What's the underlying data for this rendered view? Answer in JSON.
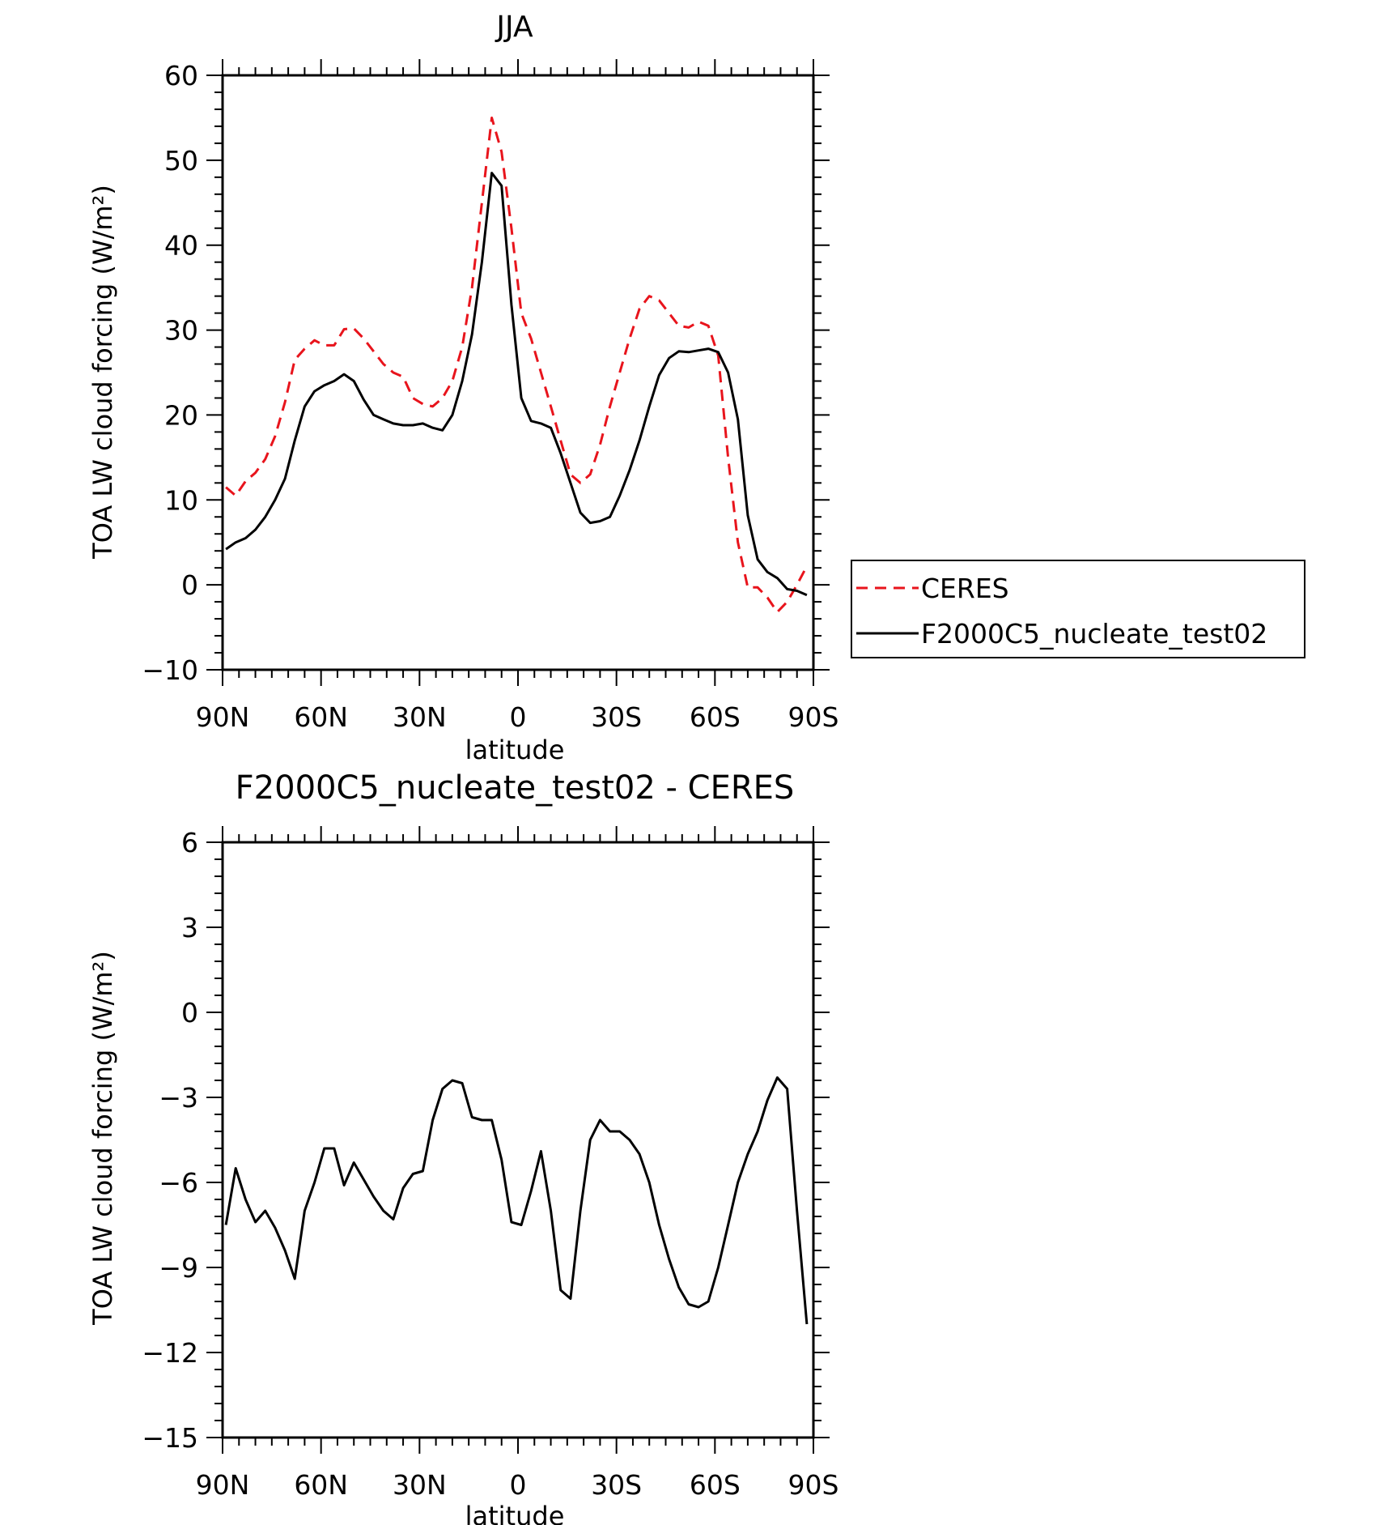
{
  "chart_data": [
    {
      "type": "line",
      "title": "JJA",
      "xlabel": "latitude",
      "ylabel": "TOA LW cloud forcing (W/m²)",
      "ylim": [
        -10,
        60
      ],
      "xlim": [
        90,
        -90
      ],
      "yticks": [
        -10,
        0,
        10,
        20,
        30,
        40,
        50,
        60
      ],
      "xticks": [
        {
          "value": 90,
          "label": "90N"
        },
        {
          "value": 60,
          "label": "60N"
        },
        {
          "value": 30,
          "label": "30N"
        },
        {
          "value": 0,
          "label": "0"
        },
        {
          "value": -30,
          "label": "30S"
        },
        {
          "value": -60,
          "label": "60S"
        },
        {
          "value": -90,
          "label": "90S"
        }
      ],
      "legend": "right",
      "series": [
        {
          "name": "CERES",
          "color": "#e8141c",
          "dash": "dashed",
          "x": [
            89,
            86,
            83,
            80,
            77,
            74,
            71,
            68,
            65,
            62,
            59,
            56,
            53,
            50,
            47,
            44,
            41,
            38,
            35,
            32,
            29,
            26,
            23,
            20,
            17,
            14,
            11,
            8,
            5,
            2,
            -1,
            -4,
            -7,
            -10,
            -13,
            -16,
            -19,
            -22,
            -25,
            -28,
            -31,
            -34,
            -37,
            -40,
            -43,
            -46,
            -49,
            -52,
            -55,
            -58,
            -61,
            -64,
            -67,
            -70,
            -73,
            -76,
            -79,
            -82,
            -85,
            -88
          ],
          "values": [
            11.5,
            10.5,
            12.2,
            13.2,
            14.8,
            17.5,
            21.5,
            26.5,
            27.8,
            28.8,
            28.2,
            28.2,
            30.1,
            30.2,
            29.0,
            27.5,
            26.0,
            25.0,
            24.5,
            22.0,
            21.3,
            21.0,
            22.0,
            24.0,
            28.0,
            35.0,
            45.0,
            55.0,
            51.0,
            42.0,
            32.0,
            29.0,
            25.0,
            21.0,
            17.0,
            13.0,
            12.0,
            13.0,
            16.5,
            21.0,
            25.0,
            29.0,
            32.5,
            34.0,
            33.5,
            32.0,
            30.5,
            30.3,
            31.0,
            30.5,
            27.0,
            15.0,
            5.0,
            -0.3,
            -0.3,
            -1.5,
            -3.2,
            -2.0,
            0.0,
            2.2
          ]
        },
        {
          "name": "F2000C5_nucleate_test02",
          "color": "#000000",
          "dash": "solid",
          "x": [
            89,
            86,
            83,
            80,
            77,
            74,
            71,
            68,
            65,
            62,
            59,
            56,
            53,
            50,
            47,
            44,
            41,
            38,
            35,
            32,
            29,
            26,
            23,
            20,
            17,
            14,
            11,
            8,
            5,
            2,
            -1,
            -4,
            -7,
            -10,
            -13,
            -16,
            -19,
            -22,
            -25,
            -28,
            -31,
            -34,
            -37,
            -40,
            -43,
            -46,
            -49,
            -52,
            -55,
            -58,
            -61,
            -64,
            -67,
            -70,
            -73,
            -76,
            -79,
            -82,
            -85,
            -88
          ],
          "values": [
            4.2,
            5.0,
            5.5,
            6.5,
            8.0,
            10.0,
            12.5,
            17.0,
            21.0,
            22.8,
            23.5,
            24.0,
            24.8,
            24.0,
            21.8,
            20.0,
            19.5,
            19.0,
            18.8,
            18.8,
            19.0,
            18.5,
            18.2,
            20.0,
            24.0,
            29.5,
            38.0,
            48.5,
            47.0,
            33.0,
            22.0,
            19.3,
            19.0,
            18.5,
            15.5,
            12.0,
            8.5,
            7.3,
            7.5,
            8.0,
            10.5,
            13.5,
            17.0,
            21.0,
            24.7,
            26.7,
            27.5,
            27.4,
            27.6,
            27.8,
            27.4,
            25.0,
            19.5,
            8.2,
            3.0,
            1.5,
            0.8,
            -0.5,
            -0.7,
            -1.2
          ]
        }
      ]
    },
    {
      "type": "line",
      "title": "F2000C5_nucleate_test02 - CERES",
      "xlabel": "latitude",
      "ylabel": "TOA LW cloud forcing (W/m²)",
      "ylim": [
        -15,
        6
      ],
      "xlim": [
        90,
        -90
      ],
      "yticks": [
        -15,
        -12,
        -9,
        -6,
        -3,
        0,
        3,
        6
      ],
      "xticks": [
        {
          "value": 90,
          "label": "90N"
        },
        {
          "value": 60,
          "label": "60N"
        },
        {
          "value": 30,
          "label": "30N"
        },
        {
          "value": 0,
          "label": "0"
        },
        {
          "value": -30,
          "label": "30S"
        },
        {
          "value": -60,
          "label": "60S"
        },
        {
          "value": -90,
          "label": "90S"
        }
      ],
      "series": [
        {
          "color": "#000000",
          "dash": "solid",
          "x": [
            89,
            86,
            83,
            80,
            77,
            74,
            71,
            68,
            65,
            62,
            59,
            56,
            53,
            50,
            47,
            44,
            41,
            38,
            35,
            32,
            29,
            26,
            23,
            20,
            17,
            14,
            11,
            8,
            5,
            2,
            -1,
            -4,
            -7,
            -10,
            -13,
            -16,
            -19,
            -22,
            -25,
            -28,
            -31,
            -34,
            -37,
            -40,
            -43,
            -46,
            -49,
            -52,
            -55,
            -58,
            -61,
            -64,
            -67,
            -70,
            -73,
            -76,
            -79,
            -82,
            -85,
            -88
          ],
          "values": [
            -7.5,
            -5.5,
            -6.6,
            -7.4,
            -7.0,
            -7.6,
            -8.4,
            -9.4,
            -7.0,
            -6.0,
            -4.8,
            -4.8,
            -6.1,
            -5.3,
            -5.9,
            -6.5,
            -7.0,
            -7.3,
            -6.2,
            -5.7,
            -5.6,
            -3.8,
            -2.7,
            -2.4,
            -2.5,
            -3.7,
            -3.8,
            -3.8,
            -5.2,
            -7.4,
            -7.5,
            -6.3,
            -4.9,
            -7.0,
            -9.8,
            -10.1,
            -7.0,
            -4.5,
            -3.8,
            -4.2,
            -4.2,
            -4.5,
            -5.0,
            -6.0,
            -7.5,
            -8.7,
            -9.7,
            -10.3,
            -10.4,
            -10.2,
            -9.0,
            -7.5,
            -6.0,
            -5.0,
            -4.2,
            -3.1,
            -2.3,
            -2.7,
            -7.0,
            -11.0
          ]
        }
      ]
    }
  ]
}
